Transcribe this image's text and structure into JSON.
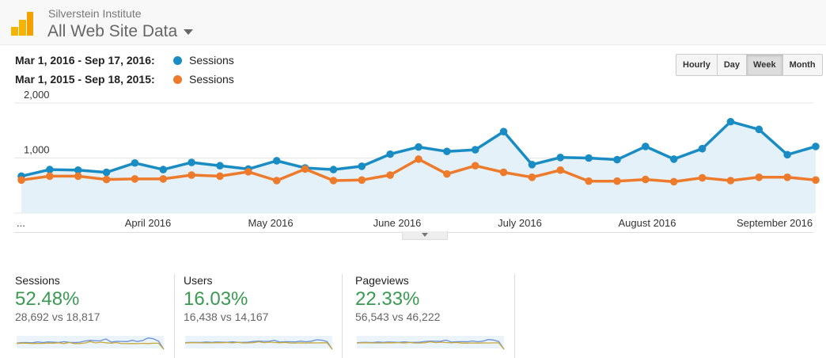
{
  "header": {
    "org": "Silverstein Institute",
    "title": "All Web Site Data"
  },
  "legend": [
    {
      "range": "Mar 1, 2016 - Sep 17, 2016:",
      "label": "Sessions",
      "color": "#1a8cc4"
    },
    {
      "range": "Mar 1, 2015 - Sep 18, 2015:",
      "label": "Sessions",
      "color": "#ee7b2b"
    }
  ],
  "granularity": {
    "options": [
      "Hourly",
      "Day",
      "Week",
      "Month"
    ],
    "selected": "Week"
  },
  "chart_data": {
    "type": "line",
    "y_tick_labels": [
      "2,000",
      "1,000"
    ],
    "ylim": [
      0,
      2000
    ],
    "x_tick_labels": [
      "...",
      "April 2016",
      "May 2016",
      "June 2016",
      "July 2016",
      "August 2016",
      "September 2016"
    ],
    "series": [
      {
        "name": "Sessions",
        "color": "#1a8cc4",
        "fill": true,
        "values": [
          670,
          790,
          780,
          740,
          910,
          790,
          920,
          860,
          800,
          950,
          820,
          790,
          850,
          1070,
          1200,
          1120,
          1150,
          1480,
          880,
          1010,
          1000,
          970,
          1210,
          980,
          1170,
          1660,
          1520,
          1060,
          1210
        ]
      },
      {
        "name": "Sessions",
        "color": "#ee7b2b",
        "fill": false,
        "values": [
          600,
          670,
          670,
          610,
          620,
          620,
          690,
          670,
          750,
          590,
          800,
          590,
          600,
          690,
          980,
          710,
          860,
          740,
          650,
          780,
          580,
          580,
          610,
          570,
          640,
          590,
          650,
          650,
          600
        ]
      }
    ]
  },
  "metrics": [
    {
      "label": "Sessions",
      "pct": "52.48%",
      "vs": "28,692 vs 18,817"
    },
    {
      "label": "Users",
      "pct": "16.03%",
      "vs": "16,438 vs 14,167"
    },
    {
      "label": "Pageviews",
      "pct": "22.33%",
      "vs": "56,543 vs 46,222"
    }
  ]
}
